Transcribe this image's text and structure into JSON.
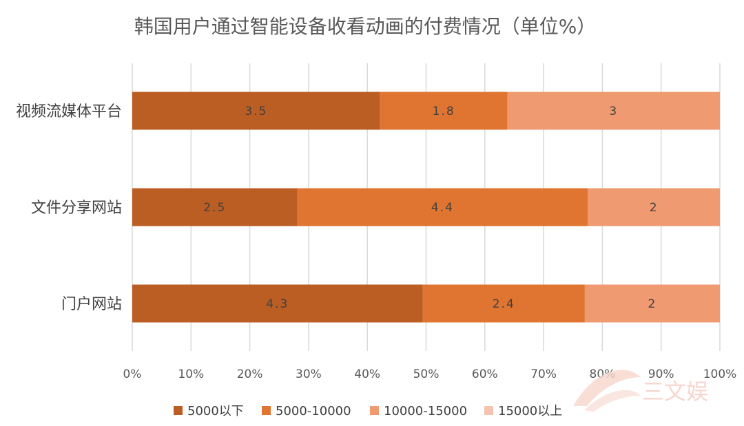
{
  "chart_data": {
    "type": "bar",
    "orientation": "horizontal",
    "stacked": "percent",
    "title": "韩国用户通过智能设备收看动画的付费情况（单位%）",
    "categories": [
      "视频流媒体平台",
      "文件分享网站",
      "门户网站"
    ],
    "series": [
      {
        "name": "5000以下",
        "color": "#bb5e24",
        "values": [
          3.5,
          2.5,
          4.3
        ]
      },
      {
        "name": "5000-10000",
        "color": "#df7530",
        "values": [
          1.8,
          4.4,
          2.4
        ]
      },
      {
        "name": "10000-15000",
        "color": "#ef9a70",
        "values": [
          3,
          2,
          2
        ]
      },
      {
        "name": "15000以上",
        "color": "#f5c4b0",
        "values": [
          0,
          0,
          0
        ]
      }
    ],
    "data_labels": [
      [
        "3.5",
        "1.8",
        "3"
      ],
      [
        "2.5",
        "4.4",
        "2"
      ],
      [
        "4.3",
        "2.4",
        "2"
      ]
    ],
    "xlim": [
      0,
      100
    ],
    "xticks": [
      "0%",
      "10%",
      "20%",
      "30%",
      "40%",
      "50%",
      "60%",
      "70%",
      "80%",
      "90%",
      "100%"
    ],
    "grid": "vertical",
    "legend": "bottom"
  },
  "watermark": {
    "text": "三文娱"
  }
}
